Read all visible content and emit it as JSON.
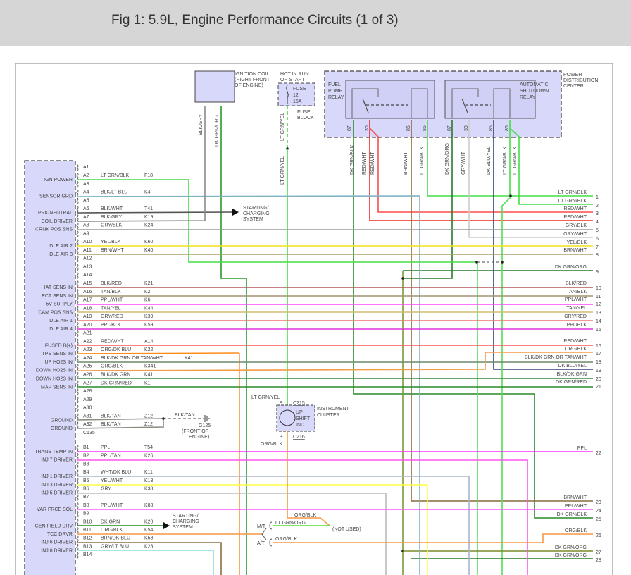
{
  "title": "Fig 1: 5.9L, Engine Performance Circuits (1 of 3)",
  "connector": {
    "name": "C135",
    "pins": [
      {
        "pin": "A1",
        "function": "",
        "wire": "",
        "circuit": "",
        "color": ""
      },
      {
        "pin": "A2",
        "function": "IGN POWER",
        "wire": "LT GRN/BLK",
        "circuit": "F18",
        "color": "#44dd44"
      },
      {
        "pin": "A3",
        "function": "",
        "wire": "",
        "circuit": "",
        "color": ""
      },
      {
        "pin": "A4",
        "function": "SENSOR GRD",
        "wire": "BLK/LT BLU",
        "circuit": "K4",
        "color": "#7fb3c2"
      },
      {
        "pin": "A5",
        "function": "",
        "wire": "",
        "circuit": "",
        "color": ""
      },
      {
        "pin": "A6",
        "function": "PRK/NEUTRAL",
        "wire": "BLK/WHT",
        "circuit": "T41",
        "color": "#555555"
      },
      {
        "pin": "A7",
        "function": "COIL DRIVER",
        "wire": "BLK/GRY",
        "circuit": "K19",
        "color": "#8a8a8a"
      },
      {
        "pin": "A8",
        "function": "CRNK POS SNS",
        "wire": "GRY/BLK",
        "circuit": "K24",
        "color": "#9a9a9a"
      },
      {
        "pin": "A9",
        "function": "",
        "wire": "",
        "circuit": "",
        "color": ""
      },
      {
        "pin": "A10",
        "function": "IDLE AIR 2",
        "wire": "YEL/BLK",
        "circuit": "K60",
        "color": "#f2e21a"
      },
      {
        "pin": "A11",
        "function": "IDLE AIR 3",
        "wire": "BRN/WHT",
        "circuit": "K40",
        "color": "#ad9d6a"
      },
      {
        "pin": "A12",
        "function": "",
        "wire": "",
        "circuit": "",
        "color": ""
      },
      {
        "pin": "A13",
        "function": "",
        "wire": "",
        "circuit": "",
        "color": ""
      },
      {
        "pin": "A14",
        "function": "",
        "wire": "",
        "circuit": "",
        "color": ""
      },
      {
        "pin": "A15",
        "function": "IAT SENS IN",
        "wire": "BLK/RED",
        "circuit": "K21",
        "color": "#b05a5a"
      },
      {
        "pin": "A16",
        "function": "ECT SENS IN",
        "wire": "TAN/BLK",
        "circuit": "K2",
        "color": "#a39272"
      },
      {
        "pin": "A17",
        "function": "5V SUPPLY",
        "wire": "PPL/WHT",
        "circuit": "K6",
        "color": "#ff44ff"
      },
      {
        "pin": "A18",
        "function": "CAM POS SNS",
        "wire": "TAN/YEL",
        "circuit": "K44",
        "color": "#cdbd72"
      },
      {
        "pin": "A19",
        "function": "IDLE AIR 1",
        "wire": "GRY/RED",
        "circuit": "K39",
        "color": "#f07070"
      },
      {
        "pin": "A20",
        "function": "IDLE AIR 4",
        "wire": "PPL/BLK",
        "circuit": "K59",
        "color": "#dd33dd"
      },
      {
        "pin": "A21",
        "function": "",
        "wire": "",
        "circuit": "",
        "color": ""
      },
      {
        "pin": "A22",
        "function": "FUSED B(+)",
        "wire": "RED/WHT",
        "circuit": "A14",
        "color": "#ff5a5a"
      },
      {
        "pin": "A23",
        "function": "TPS SENS IN",
        "wire": "ORG/DK BLU",
        "circuit": "K22",
        "color": "#ff8c1a"
      },
      {
        "pin": "A24",
        "function": "UP HO2S IN",
        "wire": "BLK/DK GRN OR TAN/WHT",
        "circuit": "K41",
        "color": "#6a8a6a"
      },
      {
        "pin": "A25",
        "function": "DOWN HO2S IN",
        "wire": "ORG/BLK",
        "circuit": "K341",
        "color": "#f39a45"
      },
      {
        "pin": "A26",
        "function": "DOWN HO2S IN",
        "wire": "BLK/DK GRN",
        "circuit": "K41",
        "color": "#3a873a"
      },
      {
        "pin": "A27",
        "function": "MAP SENS IN",
        "wire": "DK GRN/RED",
        "circuit": "K1",
        "color": "#2a8a2a"
      },
      {
        "pin": "A28",
        "function": "",
        "wire": "",
        "circuit": "",
        "color": ""
      },
      {
        "pin": "A29",
        "function": "",
        "wire": "",
        "circuit": "",
        "color": ""
      },
      {
        "pin": "A30",
        "function": "",
        "wire": "",
        "circuit": "",
        "color": ""
      },
      {
        "pin": "A31",
        "function": "GROUND",
        "wire": "BLK/TAN",
        "circuit": "Z12",
        "color": "#8a8a80"
      },
      {
        "pin": "A32",
        "function": "GROUND",
        "wire": "BLK/TAN",
        "circuit": "Z12",
        "color": "#8a8a80"
      },
      {
        "pin": "B1",
        "function": "TRANS TEMP IN",
        "wire": "PPL",
        "circuit": "T54",
        "color": "#ff33ff"
      },
      {
        "pin": "B2",
        "function": "INJ 7 DRIVER",
        "wire": "PPL/TAN",
        "circuit": "K26",
        "color": "#ff55ee"
      },
      {
        "pin": "B3",
        "function": "",
        "wire": "",
        "circuit": "",
        "color": ""
      },
      {
        "pin": "B4",
        "function": "INJ 1 DRIVER",
        "wire": "WHT/DK BLU",
        "circuit": "K11",
        "color": "#aab4cc"
      },
      {
        "pin": "B5",
        "function": "INJ 3 DRIVER",
        "wire": "YEL/WHT",
        "circuit": "K13",
        "color": "#ffff44"
      },
      {
        "pin": "B6",
        "function": "INJ 5 DRIVER",
        "wire": "GRY",
        "circuit": "K38",
        "color": "#bbbbbb"
      },
      {
        "pin": "B7",
        "function": "",
        "wire": "",
        "circuit": "",
        "color": ""
      },
      {
        "pin": "B8",
        "function": "VAR FRCE SOL",
        "wire": "PPL/WHT",
        "circuit": "K88",
        "color": "#ff55ff"
      },
      {
        "pin": "B9",
        "function": "",
        "wire": "",
        "circuit": "",
        "color": ""
      },
      {
        "pin": "B10",
        "function": "GEN FIELD DRV",
        "wire": "DK GRN",
        "circuit": "K20",
        "color": "#228822"
      },
      {
        "pin": "B11",
        "function": "TCC DRVR",
        "wire": "ORG/BLK",
        "circuit": "K54",
        "color": "#f39a45"
      },
      {
        "pin": "B12",
        "function": "INJ 6 DRIVER",
        "wire": "BRN/DK BLU",
        "circuit": "K58",
        "color": "#8a7040"
      },
      {
        "pin": "B13",
        "function": "INJ 8 DRIVER",
        "wire": "GRY/LT BLU",
        "circuit": "K28",
        "color": "#88dddd"
      },
      {
        "pin": "B14",
        "function": "",
        "wire": "",
        "circuit": "",
        "color": ""
      }
    ]
  },
  "right_wires": [
    {
      "num": "1",
      "label": "LT GRN/BLK",
      "color": "#44dd44"
    },
    {
      "num": "2",
      "label": "LT GRN/BLK",
      "color": "#44dd44"
    },
    {
      "num": "3",
      "label": "RED/WHT",
      "color": "#ff3a3a"
    },
    {
      "num": "4",
      "label": "RED/WHT",
      "color": "#ee2a2a"
    },
    {
      "num": "5",
      "label": "GRY/BLK",
      "color": "#9a9a9a"
    },
    {
      "num": "6",
      "label": "GRY/WHT",
      "color": "#cccccc"
    },
    {
      "num": "7",
      "label": "YEL/BLK",
      "color": "#f2e21a"
    },
    {
      "num": "8",
      "label": "BRN/WHT",
      "color": "#ad9d6a"
    },
    {
      "num": "9",
      "label": "DK GRN/ORG",
      "color": "#2a7a2a"
    },
    {
      "num": "10",
      "label": "BLK/RED",
      "color": "#b05a5a"
    },
    {
      "num": "11",
      "label": "TAN/BLK",
      "color": "#a39272"
    },
    {
      "num": "12",
      "label": "PPL/WHT",
      "color": "#ff44ff"
    },
    {
      "num": "13",
      "label": "TAN/YEL",
      "color": "#cdbd72"
    },
    {
      "num": "14",
      "label": "GRY/RED",
      "color": "#f07070"
    },
    {
      "num": "15",
      "label": "PPL/BLK",
      "color": "#dd33dd"
    },
    {
      "num": "16",
      "label": "RED/WHT",
      "color": "#ff5a5a"
    },
    {
      "num": "17",
      "label": "ORG/BLK",
      "color": "#ff8c1a"
    },
    {
      "num": "18",
      "label": "BLK/DK GRN OR TAN/WHT",
      "color": "#6a8a6a"
    },
    {
      "num": "19",
      "label": "DK BLU/YEL",
      "color": "#7a8aa8"
    },
    {
      "num": "20",
      "label": "BLK/DK GRN",
      "color": "#3a873a"
    },
    {
      "num": "21",
      "label": "DK GRN/RED",
      "color": "#2a8a2a"
    },
    {
      "num": "22",
      "label": "PPL",
      "color": "#ff33ff"
    },
    {
      "num": "23",
      "label": "BRN/WHT",
      "color": "#8a6a3a"
    },
    {
      "num": "24",
      "label": "PPL/WHT",
      "color": "#ff55ff"
    },
    {
      "num": "25",
      "label": "DK GRN/BLK",
      "color": "#2a7a2a"
    },
    {
      "num": "26",
      "label": "ORG/BLK",
      "color": "#f39a45"
    },
    {
      "num": "27",
      "label": "DK GRN/ORG",
      "color": "#2a7a2a"
    },
    {
      "num": "28",
      "label": "DK GRN/ORG",
      "color": "#2a7a2a"
    }
  ],
  "ignition_coil": {
    "lines": [
      "IGNITION COIL",
      "(RIGHT FRONT",
      "OF ENGINE)"
    ],
    "wires": [
      "BLK/GRY",
      "DK GRN/ORG"
    ]
  },
  "fuse": {
    "source": [
      "HOT IN RUN",
      "OR START"
    ],
    "lines": [
      "FUSE",
      "12",
      "15A"
    ],
    "block": [
      "FUSE",
      "BLOCK"
    ],
    "wire": "LT GRN/YEL"
  },
  "pdc": {
    "lines": [
      "POWER",
      "DISTRIBUTION",
      "CENTER"
    ],
    "fuel_pump_relay": [
      "FUEL",
      "PUMP",
      "RELAY"
    ],
    "asd_relay": [
      "AUTOMATIC",
      "SHUTDOWN",
      "RELAY"
    ],
    "pins": [
      "87",
      "30",
      "85",
      "86"
    ],
    "wire_labels": [
      "DK GRN/BLK",
      "RED/WHT",
      "RED/WHT",
      "BRN/WHT",
      "LT GRN/BLK",
      "DK GRN/ORG",
      "GRY/WHT",
      "DK BLU/YEL",
      "LT GRN/BLK",
      "LT GRN/BLK"
    ]
  },
  "starting_charging": [
    "STARTING/",
    "CHARGING",
    "SYSTEM"
  ],
  "ground": {
    "wire": "BLK/TAN",
    "name": "G125",
    "location": [
      "(FRONT OF",
      "ENGINE)"
    ]
  },
  "instrument_cluster": {
    "lines": [
      "INSTRUMENT",
      "CLUSTER"
    ],
    "indicator": [
      "UP-",
      "SHIFT",
      "IND."
    ],
    "top_connector": "C215",
    "top_pin": "8",
    "top_wire": "LT GRN/YEL",
    "bottom_connector": "C216",
    "bottom_pin": "3",
    "bottom_wire": "ORG/BLK"
  },
  "transmission": {
    "mt": "M/T",
    "at": "A/T",
    "mt_wire": "LT GRN/ORG",
    "at_wire": "ORG/BLK",
    "split_wire": "ORG/BLK",
    "not_used": "(NOT USED)"
  }
}
